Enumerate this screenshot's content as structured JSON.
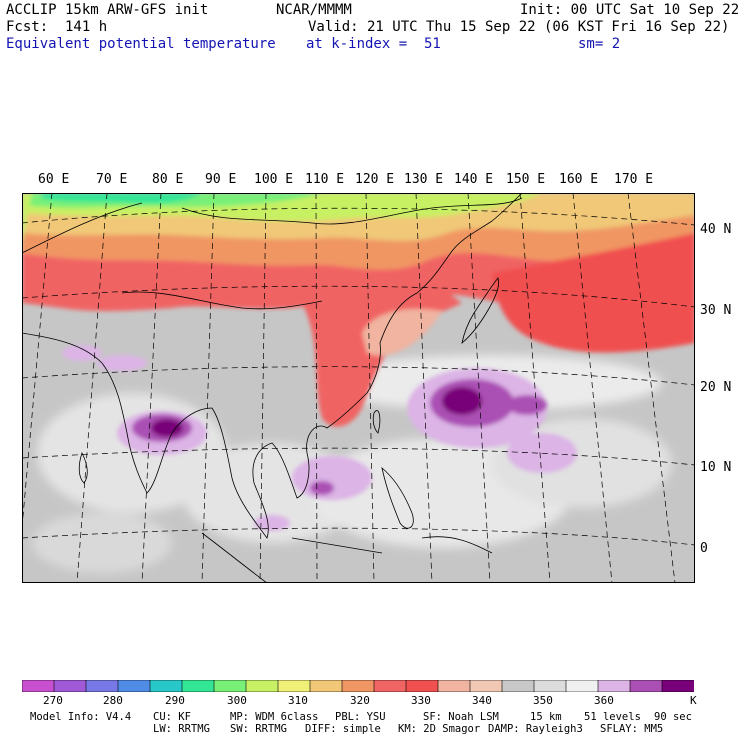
{
  "header": {
    "model": "ACCLIP 15km ARW-GFS init",
    "center": "NCAR/MMMM",
    "init": "Init: 00 UTC Sat 10 Sep 22",
    "fcst": "Fcst:  141 h",
    "valid": "Valid: 21 UTC Thu 15 Sep 22 (06 KST Fri 16 Sep 22)",
    "field": "Equivalent potential temperature",
    "level": "at k-index =  51",
    "smooth": "sm= 2"
  },
  "map": {
    "longitude_labels": [
      "60 E",
      "70 E",
      "80 E",
      "90 E",
      "100 E",
      "110 E",
      "120 E",
      "130 E",
      "140 E",
      "150 E",
      "160 E",
      "170 E"
    ],
    "latitude_labels": [
      "40 N",
      "30 N",
      "20 N",
      "10 N",
      "0"
    ],
    "colors": {
      "ocean_gray": "#c6c6c6",
      "land_outline": "#000000",
      "grid_line": "#000000"
    }
  },
  "colorbar": {
    "colors": [
      "#c850d0",
      "#a05ad8",
      "#7878e6",
      "#508ce6",
      "#28c8c8",
      "#32e696",
      "#78f078",
      "#c8f064",
      "#f0f078",
      "#f0c878",
      "#f09664",
      "#f06464",
      "#f05050",
      "#f0b4a0",
      "#f0c8b4",
      "#c8c8c8",
      "#dcdcdc",
      "#f0f0f0",
      "#dcb4e6",
      "#aa50b4",
      "#780078"
    ],
    "labels": [
      "270",
      "280",
      "290",
      "300",
      "310",
      "320",
      "330",
      "340",
      "350",
      "360"
    ],
    "unit": "K"
  },
  "model_info": {
    "line1": [
      "Model Info: V4.4",
      "CU: KF",
      "MP: WDM 6class",
      "PBL: YSU",
      "SF: Noah LSM",
      "15 km",
      "51 levels",
      "90 sec"
    ],
    "line2": [
      "LW: RRTMG",
      "SW: RRTMG",
      "DIFF: simple",
      "KM: 2D Smagor",
      "DAMP: Rayleigh3",
      "SFLAY: MM5"
    ]
  }
}
